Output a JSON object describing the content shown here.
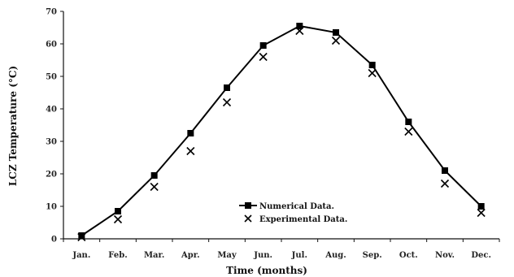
{
  "chart_data": {
    "type": "line",
    "title": "",
    "xlabel": "Time (months)",
    "ylabel": "LCZ Temperature (°C)",
    "categories": [
      "Jan.",
      "Feb.",
      "Mar.",
      "Apr.",
      "May",
      "Jun.",
      "Jul.",
      "Aug.",
      "Sep.",
      "Oct.",
      "Nov.",
      "Dec."
    ],
    "ylim": [
      0,
      70
    ],
    "yticks": [
      "0",
      "10",
      "20",
      "30",
      "40",
      "50",
      "60",
      "70"
    ],
    "grid": false,
    "legend_position": "bottom-center",
    "series": [
      {
        "name": "Numerical Data.",
        "style": "line-square",
        "color": "#000000",
        "values": [
          1,
          8.5,
          19.5,
          32.5,
          46.5,
          59.5,
          65.5,
          63.5,
          53.5,
          36,
          21,
          10
        ]
      },
      {
        "name": "Experimental Data.",
        "style": "cross",
        "color": "#000000",
        "values": [
          0.5,
          6,
          16,
          27,
          42,
          56,
          64,
          61,
          51,
          33,
          17,
          8
        ]
      }
    ]
  }
}
